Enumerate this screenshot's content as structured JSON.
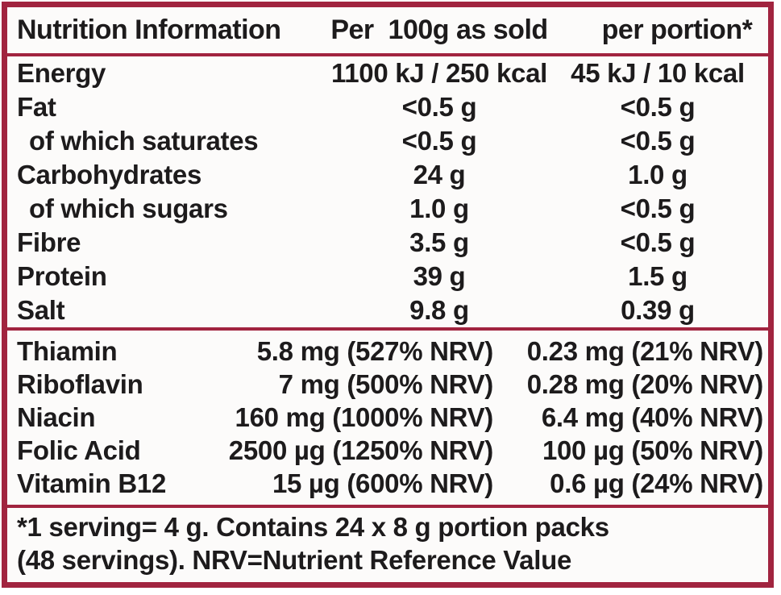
{
  "table": {
    "header": {
      "col1": "Nutrition Information",
      "col2": "Per  100g as sold",
      "col3": "per portion*"
    },
    "main_rows": [
      {
        "label": "Energy",
        "per100g": "1100 kJ / 250 kcal",
        "portion": "45 kJ / 10 kcal",
        "indent": false
      },
      {
        "label": "Fat",
        "per100g": "<0.5 g",
        "portion": "<0.5 g",
        "indent": false
      },
      {
        "label": "of which saturates",
        "per100g": "<0.5 g",
        "portion": "<0.5 g",
        "indent": true
      },
      {
        "label": "Carbohydrates",
        "per100g": "24 g",
        "portion": "1.0 g",
        "indent": false
      },
      {
        "label": "of which sugars",
        "per100g": "1.0 g",
        "portion": "<0.5 g",
        "indent": true
      },
      {
        "label": "Fibre",
        "per100g": "3.5 g",
        "portion": "<0.5 g",
        "indent": false
      },
      {
        "label": "Protein",
        "per100g": "39 g",
        "portion": "1.5 g",
        "indent": false
      },
      {
        "label": "Salt",
        "per100g": "9.8 g",
        "portion": "0.39 g",
        "indent": false
      }
    ],
    "vitamin_rows": [
      {
        "label": "Thiamin",
        "per100g": "5.8 mg (527% NRV)",
        "portion": "0.23 mg (21% NRV)"
      },
      {
        "label": "Riboflavin",
        "per100g": "7 mg (500% NRV)",
        "portion": "0.28 mg (20% NRV)"
      },
      {
        "label": "Niacin",
        "per100g": "160 mg (1000% NRV)",
        "portion": "6.4 mg (40% NRV)"
      },
      {
        "label": "Folic Acid",
        "per100g": "2500 µg (1250% NRV)",
        "portion": "100 µg (50% NRV)"
      },
      {
        "label": "Vitamin B12",
        "per100g": "15 µg (600% NRV)",
        "portion": "0.6 µg (24% NRV)"
      }
    ],
    "footnote": {
      "line1": "*1 serving= 4 g. Contains 24 x 8 g portion packs",
      "line2": "(48 servings). NRV=Nutrient Reference Value"
    }
  },
  "colors": {
    "border": "#a1243f",
    "text": "#1d1b1c",
    "background": "#fcfbfa"
  }
}
